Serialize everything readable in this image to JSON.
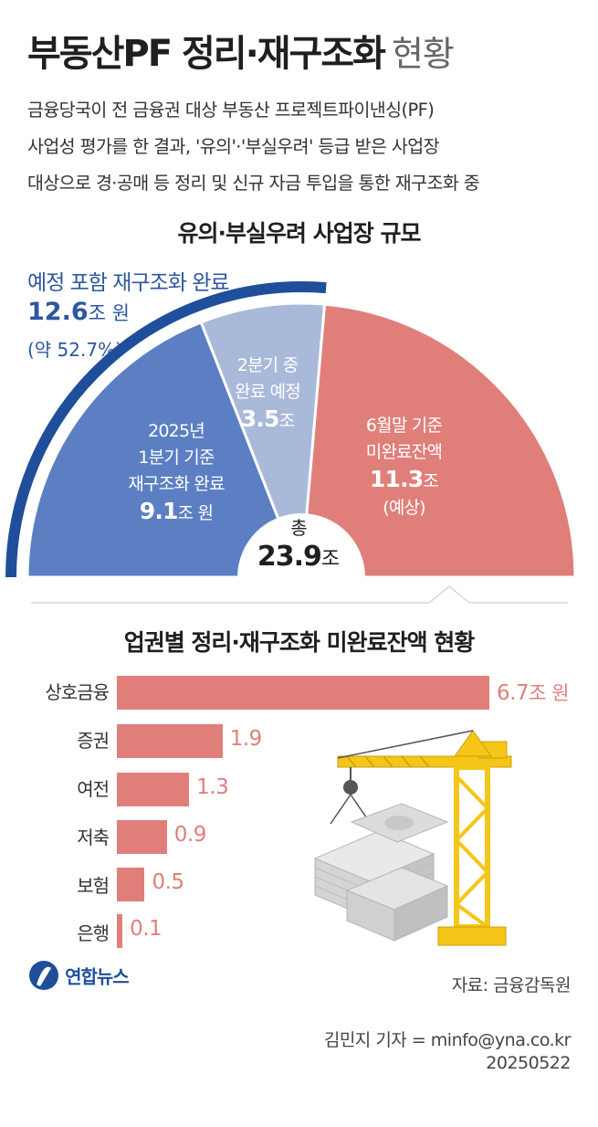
{
  "header": {
    "title_bold": "부동산PF 정리·재구조화",
    "title_light": "현황",
    "description": [
      "금융당국이 전 금융권 대상 부동산 프로젝트파이낸싱(PF)",
      "사업성 평가를 한 결과, '유의'·'부실우려' 등급 받은 사업장",
      "대상으로 경·공매 등 정리 및 신규 자금 투입을 통한 재구조화 중"
    ]
  },
  "colors": {
    "blue_dark": "#1f4f9a",
    "blue_mid": "#5b7fc2",
    "blue_light": "#a9b9d9",
    "red": "#e07f7a",
    "crane": "#f5c518"
  },
  "chart_data": [
    {
      "type": "pie",
      "title": "유의·부실우려 사업장 규모",
      "unit": "조 원",
      "total": 23.9,
      "total_label": "총",
      "total_value": "23.9",
      "total_unit": "조",
      "slices": [
        {
          "value": 9.1,
          "label": [
            "2025년",
            "1분기 기준",
            "재구조화 완료"
          ],
          "value_text": "9.1",
          "unit_text": "조 원"
        },
        {
          "value": 3.5,
          "label": [
            "2분기 중",
            "완료 예정"
          ],
          "value_text": "3.5",
          "unit_text": "조"
        },
        {
          "value": 11.3,
          "label": [
            "6월말 기준",
            "미완료잔액"
          ],
          "value_text": "11.3",
          "unit_text": "조",
          "note": "(예상)"
        }
      ],
      "bracket": {
        "label": "예정 포함 재구조화 완료",
        "value": 12.6,
        "value_text": "12.6",
        "unit_text": "조 원",
        "share_text": "(약 52.7%)"
      }
    },
    {
      "type": "bar",
      "title": "업권별 정리·재구조화 미완료잔액 현황",
      "categories": [
        "상호금융",
        "증권",
        "여전",
        "저축",
        "보험",
        "은행"
      ],
      "values": [
        6.7,
        1.9,
        1.3,
        0.9,
        0.5,
        0.1
      ],
      "value_labels": [
        "6.7",
        "1.9",
        "1.3",
        "0.9",
        "0.5",
        "0.1"
      ],
      "first_unit": "조 원",
      "xlim": [
        0,
        6.7
      ]
    }
  ],
  "footer": {
    "logo_text": "연합뉴스",
    "source": "자료: 금융감독원",
    "reporter": "김민지 기자 = minfo@yna.co.kr",
    "date": "20250522"
  }
}
